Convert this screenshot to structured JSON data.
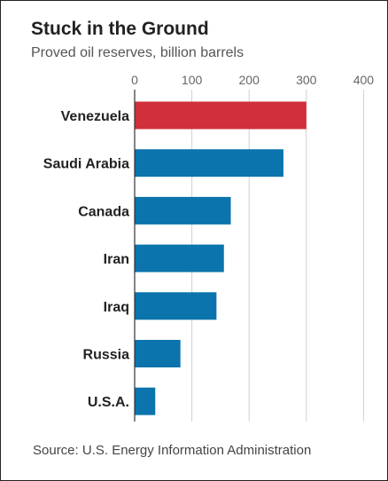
{
  "title": "Stuck in the Ground",
  "subtitle": "Proved oil reserves, billion barrels",
  "source": "Source: U.S. Energy Information Administration",
  "colors": {
    "highlight": "#d12f3b",
    "bar": "#0b74ad",
    "grid": "#d0d0d0",
    "axis": "#333333"
  },
  "chart_data": {
    "type": "bar",
    "orientation": "horizontal",
    "title": "Stuck in the Ground",
    "subtitle": "Proved oil reserves, billion barrels",
    "categories": [
      "Venezuela",
      "Saudi Arabia",
      "Canada",
      "Iran",
      "Iraq",
      "Russia",
      "U.S.A."
    ],
    "values": [
      300,
      260,
      168,
      156,
      143,
      80,
      36
    ],
    "highlight": [
      "Venezuela"
    ],
    "xlim": [
      0,
      400
    ],
    "xticks": [
      0,
      100,
      200,
      300,
      400
    ],
    "xaxis_position": "top",
    "grid": true
  }
}
